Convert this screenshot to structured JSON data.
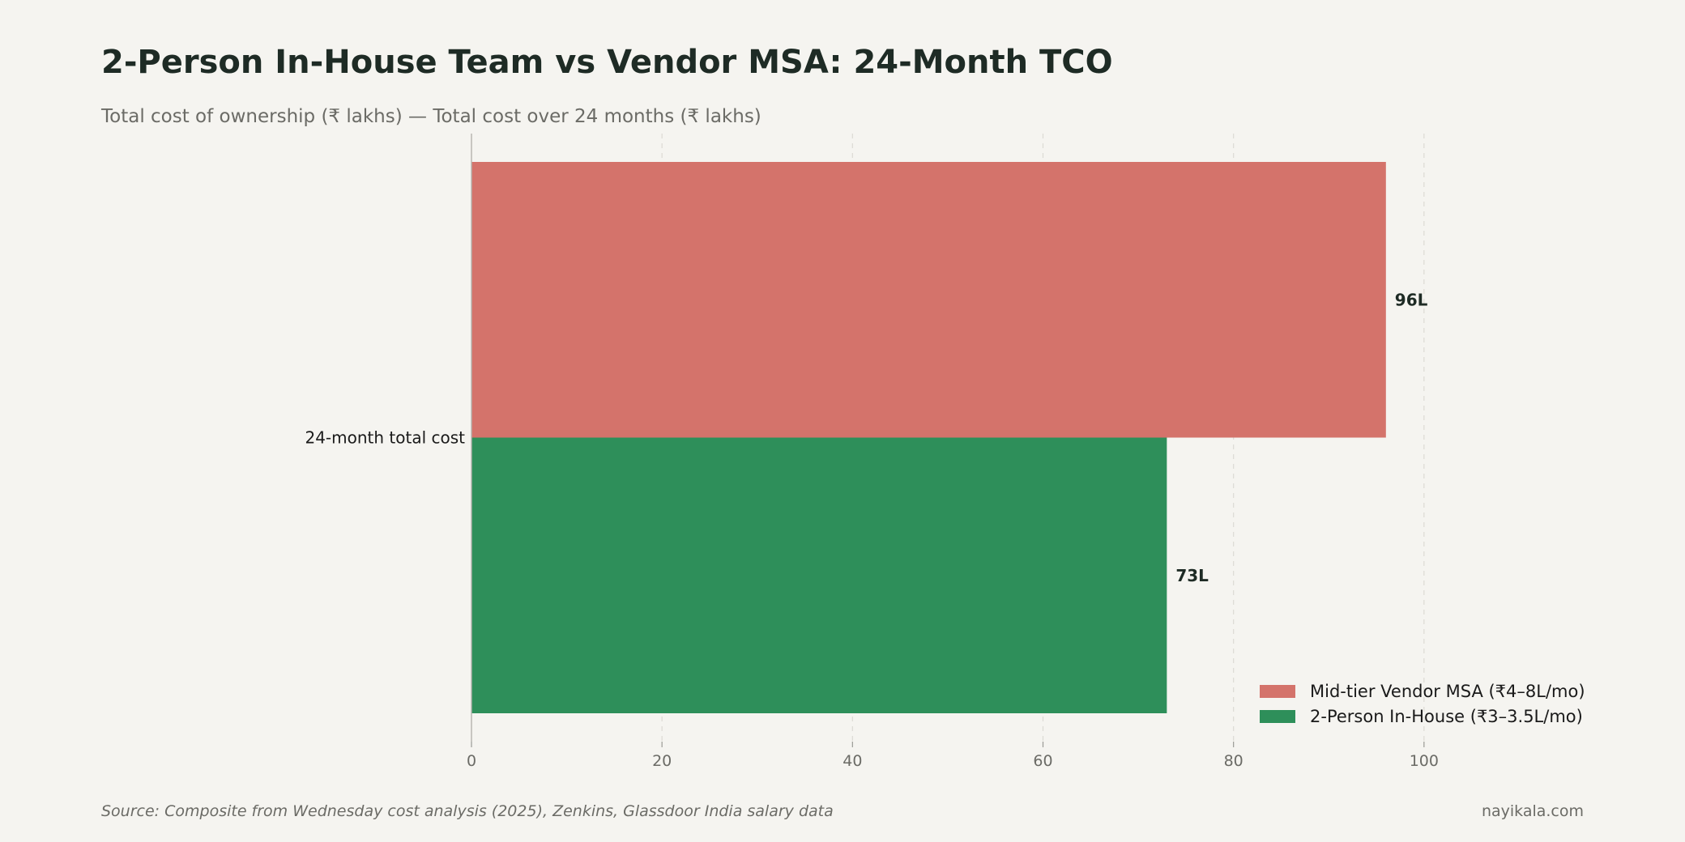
{
  "title": "2-Person In-House Team vs Vendor MSA: 24-Month TCO",
  "subtitle": "Total cost of ownership (₹ lakhs) — Total cost over 24 months (₹ lakhs)",
  "source": "Source: Composite from Wednesday cost analysis (2025), Zenkins, Glassdoor India salary data",
  "credit": "nayikala.com",
  "chart_data": {
    "type": "bar",
    "orientation": "horizontal",
    "categories": [
      "24-month total cost"
    ],
    "series": [
      {
        "name": "Mid-tier Vendor MSA (₹4–8L/mo)",
        "values": [
          96
        ],
        "labels": [
          "96L"
        ],
        "color": "#d4736b"
      },
      {
        "name": "2-Person In-House (₹3–3.5L/mo)",
        "values": [
          73
        ],
        "labels": [
          "73L"
        ],
        "color": "#2e8f5a"
      }
    ],
    "xlim": [
      0,
      120
    ],
    "xticks": [
      0,
      20,
      40,
      60,
      80,
      100
    ],
    "grid": "x, dashed",
    "legend_position": "bottom-right"
  }
}
